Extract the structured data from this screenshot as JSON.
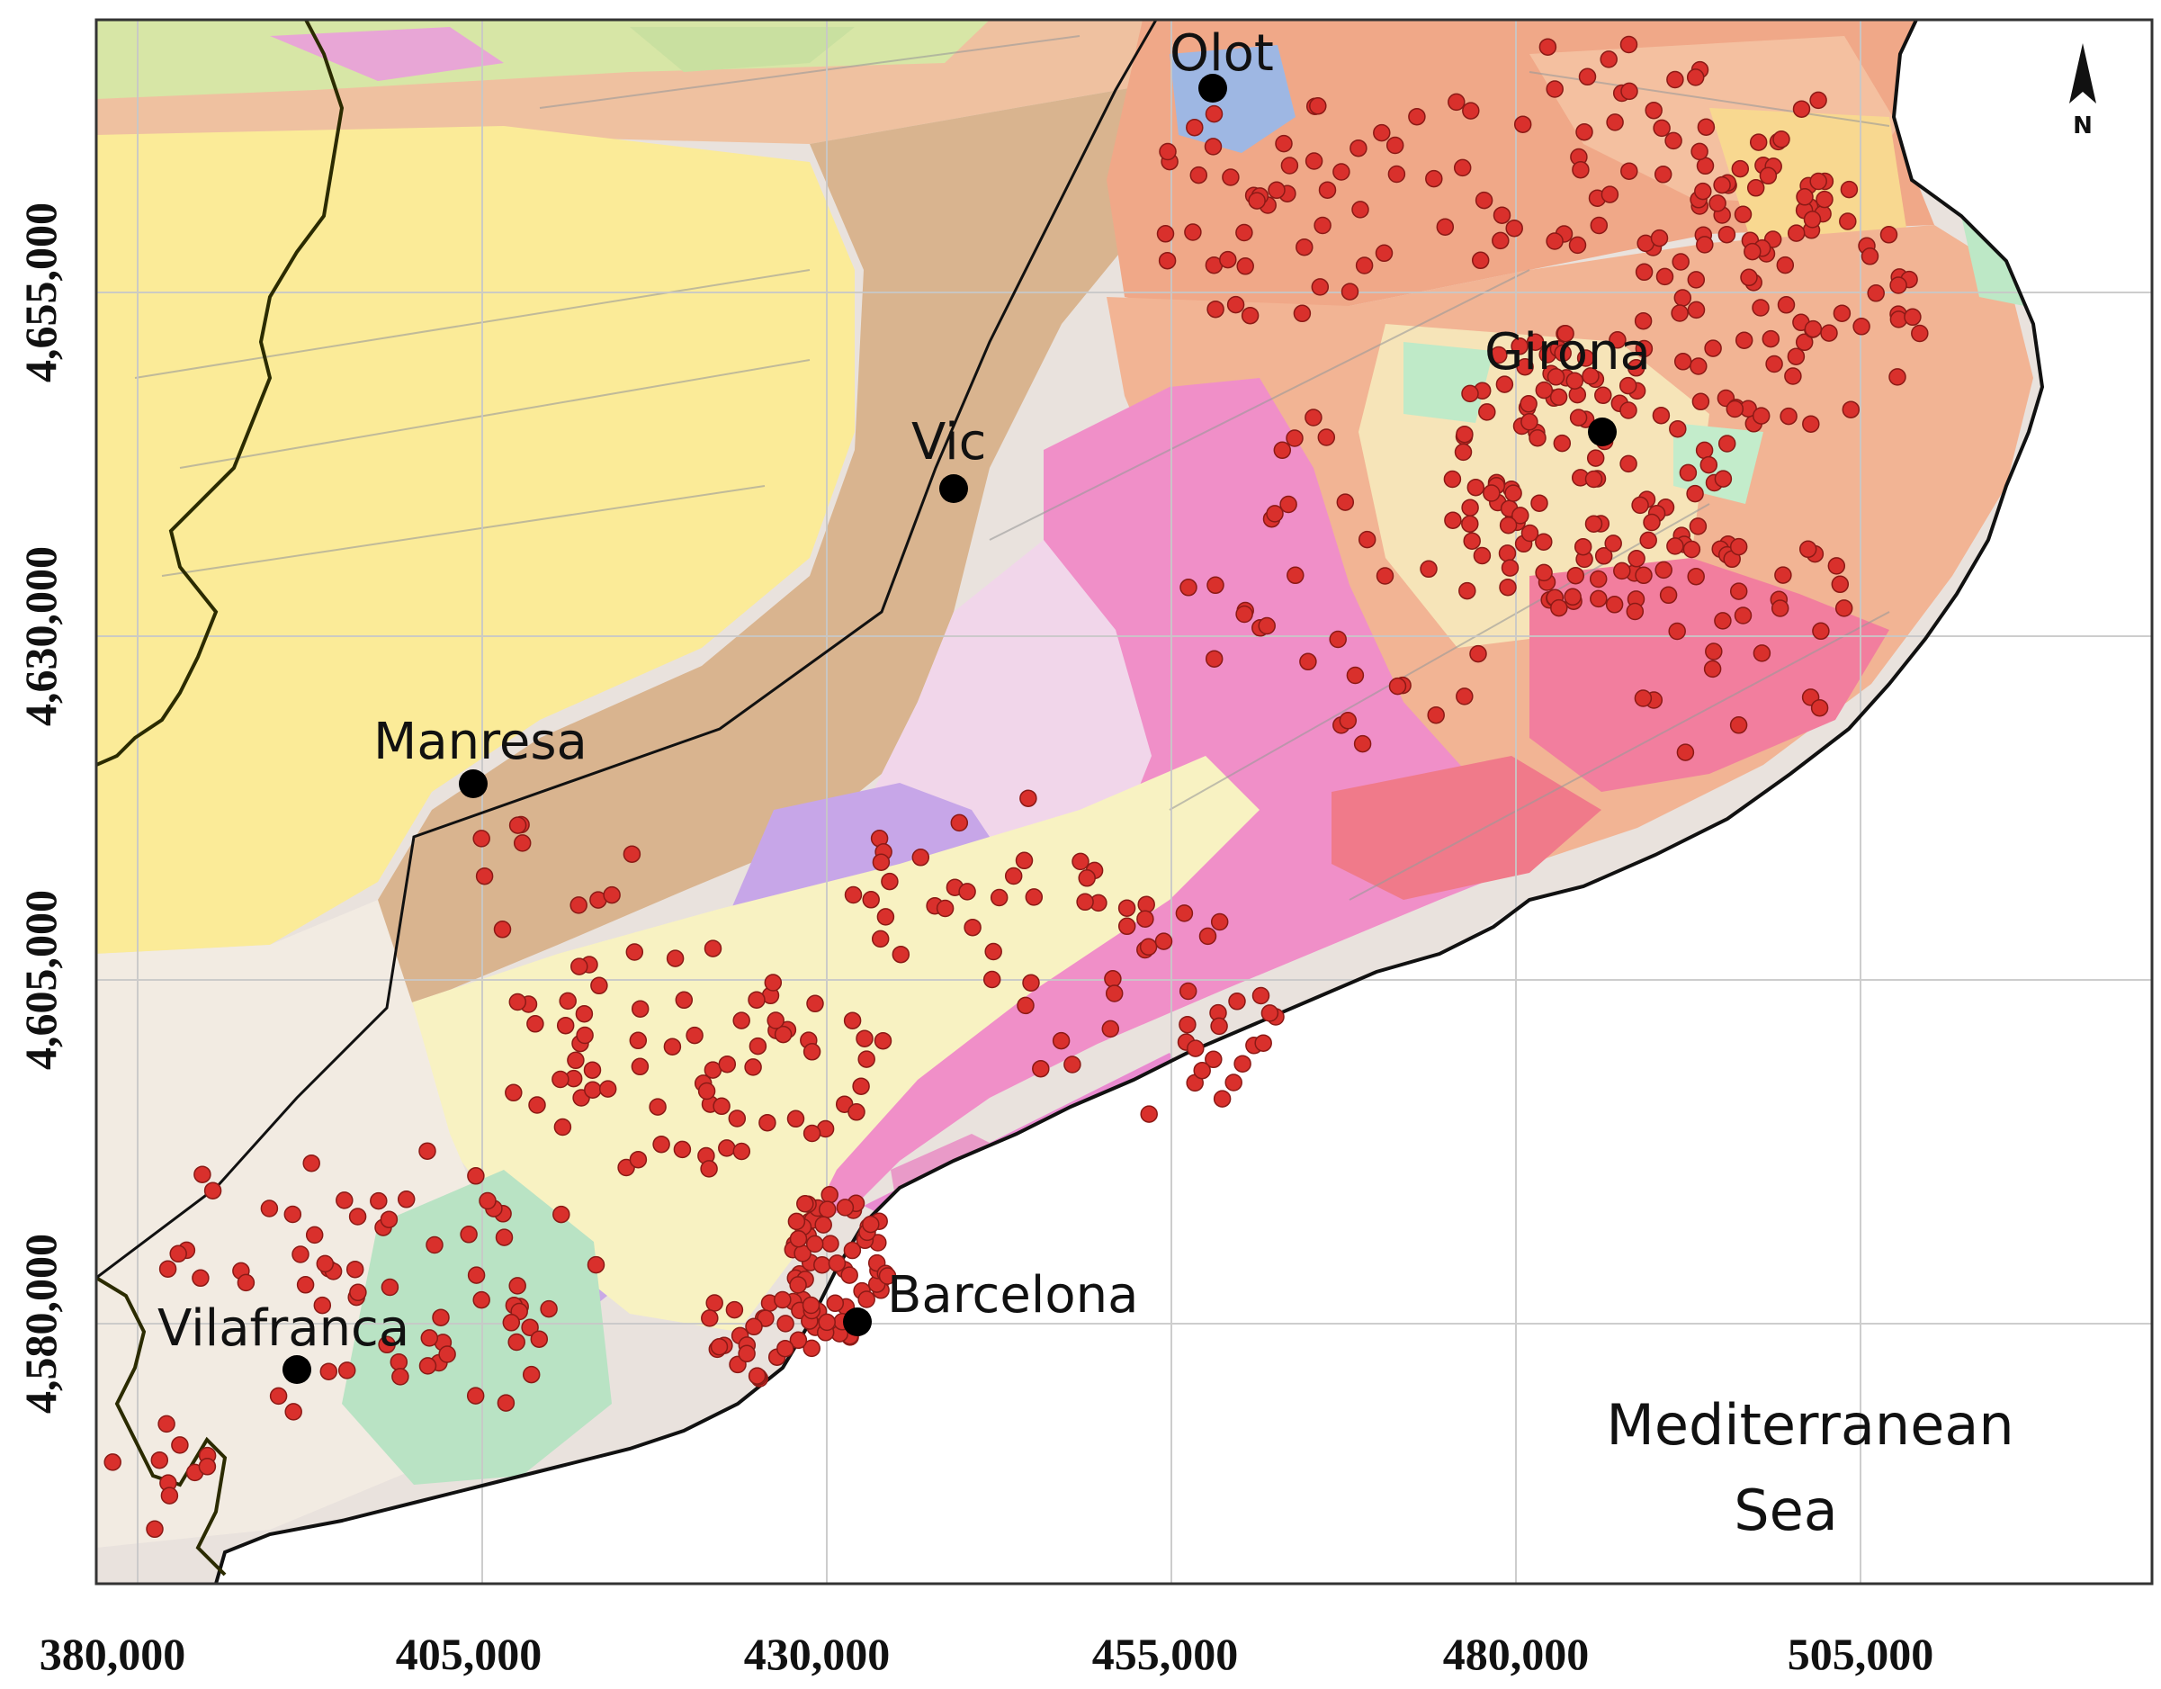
{
  "x_axis": {
    "ticks": [
      "380,000",
      "405,000",
      "430,000",
      "455,000",
      "480,000",
      "505,000"
    ]
  },
  "y_axis": {
    "ticks": [
      "4,655,000",
      "4,630,000",
      "4,605,000",
      "4,580,000"
    ]
  },
  "cities": [
    {
      "name": "Olot"
    },
    {
      "name": "Girona"
    },
    {
      "name": "Vic"
    },
    {
      "name": "Manresa"
    },
    {
      "name": "Barcelona"
    },
    {
      "name": "Vilafranca"
    }
  ],
  "sea_label": {
    "line1": "Mediterranean",
    "line2": "Sea"
  },
  "north_label": "N",
  "colors": {
    "sample_point": "#d9302c",
    "sample_point_stroke": "#8b1a16",
    "city_dot": "#000000",
    "granite_pink": "#f08fc8",
    "sediment_tan": "#d9b48f",
    "salmon": "#f0a888",
    "pale_yellow": "#fbeb98",
    "sea": "#ffffff"
  }
}
